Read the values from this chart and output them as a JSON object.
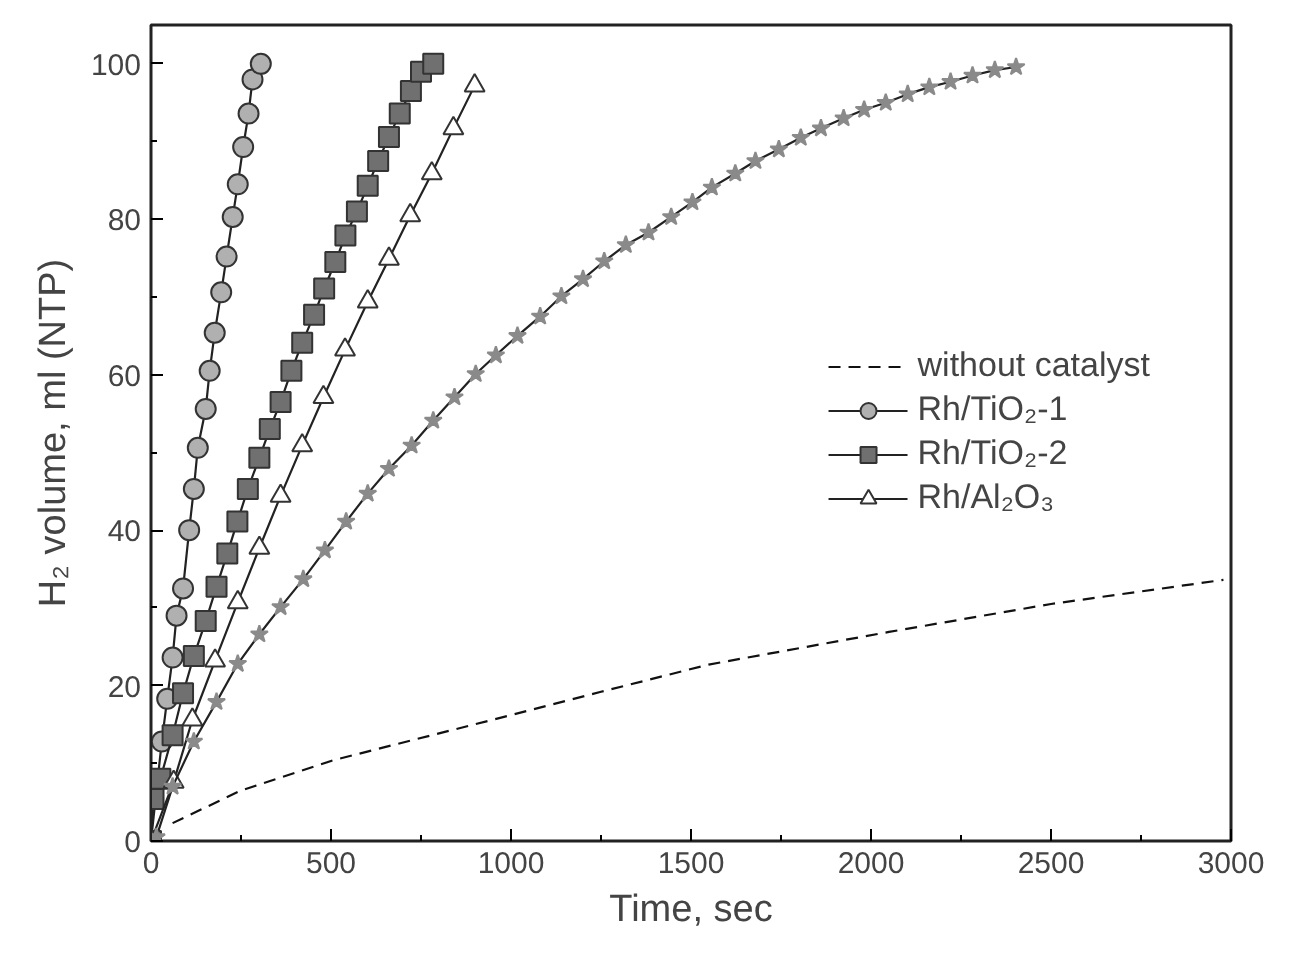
{
  "chart_data": {
    "type": "line",
    "xlabel": "Time, sec",
    "ylabel": "H₂ volume, ml (NTP)",
    "xlim": [
      0,
      3000
    ],
    "ylim": [
      0,
      105
    ],
    "xticks": [
      0,
      500,
      1000,
      1500,
      2000,
      2500,
      3000
    ],
    "yticks": [
      0,
      20,
      40,
      60,
      80,
      100
    ],
    "grid": false,
    "legend": "right",
    "series": [
      {
        "name": "without catalyst",
        "color": "#111111",
        "marker": "none",
        "line_style": "dashed",
        "x": [
          60,
          250,
          507,
          1000,
          1250,
          1549,
          2050,
          2500,
          2979
        ],
        "values": [
          2.3,
          6.5,
          10.4,
          16.2,
          19.2,
          22.7,
          26.9,
          30.5,
          33.6
        ]
      },
      {
        "name": "Rh/TiO₂-1",
        "color": "#b0b0b0",
        "marker": "circle",
        "line_style": "solid",
        "x": [
          0,
          30,
          45,
          60,
          71,
          89,
          106,
          119,
          130,
          152,
          163,
          177,
          195,
          210,
          227,
          241,
          256,
          271,
          282,
          305
        ],
        "values": [
          0,
          12.8,
          18.3,
          23.6,
          29,
          32.5,
          40,
          45.3,
          50.6,
          55.6,
          60.5,
          65.4,
          70.6,
          75.2,
          80.3,
          84.5,
          89.3,
          93.6,
          98,
          100
        ]
      },
      {
        "name": "Rh/TiO₂-2",
        "color": "#707070",
        "marker": "square",
        "line_style": "solid",
        "x": [
          0,
          7,
          26,
          60,
          89,
          119,
          152,
          182,
          212,
          240,
          269,
          301,
          330,
          360,
          390,
          420,
          453,
          481,
          512,
          540,
          572,
          602,
          631,
          661,
          691,
          722,
          750,
          784
        ],
        "values": [
          0,
          5.4,
          8,
          13.6,
          19,
          23.8,
          28.3,
          32.7,
          37,
          41.1,
          45.3,
          49.3,
          53,
          56.5,
          60.5,
          64.1,
          67.7,
          71.1,
          74.5,
          77.9,
          81,
          84.3,
          87.5,
          90.6,
          93.6,
          96.5,
          99,
          100
        ]
      },
      {
        "name": "Rh/Al₂O₃",
        "color": "#ffffff",
        "marker": "triangle",
        "line_style": "solid",
        "x": [
          0,
          63,
          115,
          178,
          241,
          301,
          360,
          420,
          479,
          539,
          602,
          661,
          720,
          780,
          840,
          899
        ],
        "values": [
          0,
          7.6,
          15.6,
          23.2,
          30.7,
          37.7,
          44.4,
          50.9,
          57.1,
          63.2,
          69.4,
          74.9,
          80.5,
          85.9,
          91.7,
          97.2
        ]
      },
      {
        "color": "#8a8a8a",
        "marker": "star",
        "line_style": "solid",
        "x": [
          0,
          15,
          60,
          119,
          182,
          241,
          301,
          360,
          423,
          483,
          542,
          602,
          661,
          724,
          784,
          843,
          902,
          958,
          1018,
          1081,
          1140,
          1200,
          1259,
          1319,
          1382,
          1445,
          1504,
          1558,
          1623,
          1679,
          1744,
          1805,
          1861,
          1924,
          1981,
          2041,
          2102,
          2162,
          2221,
          2282,
          2344,
          2403
        ],
        "values": [
          0,
          0.5,
          7,
          12.8,
          17.9,
          22.8,
          26.6,
          30.1,
          33.7,
          37.4,
          41.1,
          44.7,
          47.9,
          50.9,
          54.1,
          57.1,
          60.1,
          62.5,
          65,
          67.5,
          70.1,
          72.3,
          74.6,
          76.7,
          78.3,
          80.3,
          82.2,
          84.1,
          85.9,
          87.5,
          89,
          90.5,
          91.7,
          93,
          94.1,
          95,
          96.1,
          97,
          97.7,
          98.5,
          99.2,
          99.6
        ]
      }
    ]
  }
}
